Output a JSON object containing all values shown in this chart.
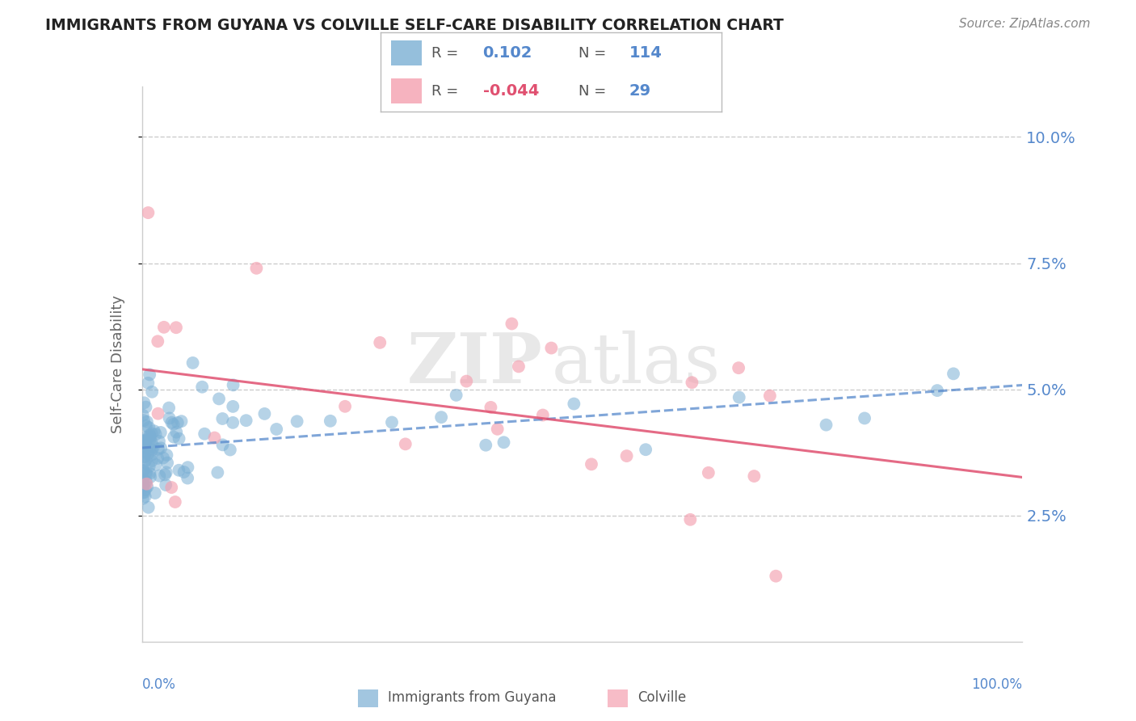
{
  "title": "IMMIGRANTS FROM GUYANA VS COLVILLE SELF-CARE DISABILITY CORRELATION CHART",
  "source": "Source: ZipAtlas.com",
  "ylabel": "Self-Care Disability",
  "legend_labels": [
    "Immigrants from Guyana",
    "Colville"
  ],
  "legend_R_vals": [
    "0.102",
    "-0.044"
  ],
  "legend_N_vals": [
    "114",
    "29"
  ],
  "blue_color": "#7bafd4",
  "blue_color_dark": "#4a90c4",
  "pink_color": "#f4a0b0",
  "pink_color_dark": "#e05070",
  "blue_line_color": "#5588cc",
  "pink_line_color": "#e05070",
  "y_tick_vals": [
    0.025,
    0.05,
    0.075,
    0.1
  ],
  "y_tick_labels": [
    "2.5%",
    "5.0%",
    "7.5%",
    "10.0%"
  ],
  "ylim": [
    0.0,
    0.11
  ],
  "xlim": [
    0.0,
    1.0
  ],
  "background_color": "#ffffff",
  "grid_color": "#cccccc",
  "title_color": "#222222",
  "tick_label_color": "#5588cc"
}
